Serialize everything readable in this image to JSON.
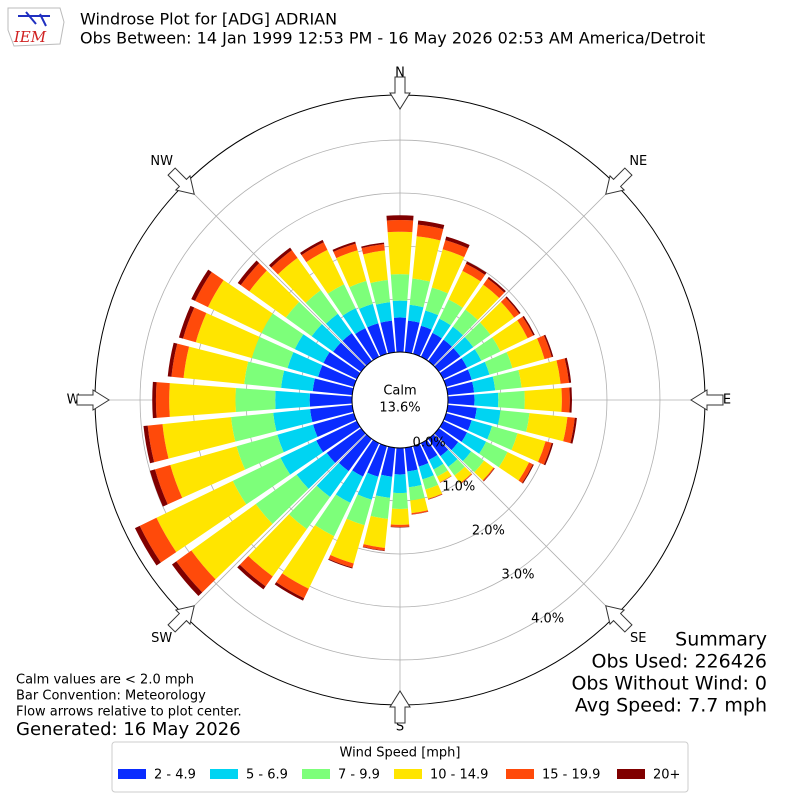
{
  "chart_data": {
    "type": "windrose",
    "title": "Windrose Plot for [ADG] ADRIAN",
    "subtitle": "Obs Between: 14 Jan 1999 12:53 PM - 16 May 2026 02:53 AM America/Detroit",
    "logo_text": "IEM",
    "calm_label": "Calm",
    "calm_value": 13.6,
    "calm_value_label": "13.6%",
    "x": [
      0,
      10,
      20,
      30,
      40,
      50,
      60,
      70,
      80,
      90,
      100,
      110,
      120,
      130,
      140,
      150,
      160,
      170,
      180,
      190,
      200,
      210,
      220,
      230,
      240,
      250,
      260,
      270,
      280,
      290,
      300,
      310,
      320,
      330,
      340,
      350
    ],
    "xticks": [
      {
        "value": 0,
        "label": "N"
      },
      {
        "value": 45,
        "label": "NE"
      },
      {
        "value": 90,
        "label": "E"
      },
      {
        "value": 135,
        "label": "SE"
      },
      {
        "value": 180,
        "label": "S"
      },
      {
        "value": 225,
        "label": "SW"
      },
      {
        "value": 270,
        "label": "W"
      },
      {
        "value": 315,
        "label": "NW"
      }
    ],
    "ylim": [
      0,
      4.85
    ],
    "yticks": [
      {
        "value": 0,
        "label": "0.0%"
      },
      {
        "value": 1,
        "label": "1.0%"
      },
      {
        "value": 2,
        "label": "2.0%"
      },
      {
        "value": 3,
        "label": "3.0%"
      },
      {
        "value": 4,
        "label": "4.0%"
      }
    ],
    "grid": true,
    "legend_title": "Wind Speed [mph]",
    "series": [
      {
        "name": "2 - 4.9",
        "color": "#0a2cff",
        "values": [
          0.65,
          0.6,
          0.55,
          0.5,
          0.5,
          0.5,
          0.5,
          0.5,
          0.5,
          0.5,
          0.55,
          0.5,
          0.5,
          0.45,
          0.4,
          0.35,
          0.4,
          0.45,
          0.5,
          0.55,
          0.6,
          0.7,
          0.75,
          0.8,
          0.85,
          0.8,
          0.8,
          0.8,
          0.75,
          0.7,
          0.7,
          0.65,
          0.65,
          0.6,
          0.6,
          0.6
        ]
      },
      {
        "name": "5 - 6.9",
        "color": "#00d4f2",
        "values": [
          0.32,
          0.3,
          0.3,
          0.3,
          0.3,
          0.3,
          0.3,
          0.35,
          0.4,
          0.45,
          0.45,
          0.4,
          0.4,
          0.3,
          0.25,
          0.2,
          0.25,
          0.3,
          0.35,
          0.4,
          0.45,
          0.55,
          0.6,
          0.7,
          0.75,
          0.7,
          0.7,
          0.65,
          0.6,
          0.6,
          0.6,
          0.5,
          0.45,
          0.42,
          0.38,
          0.35
        ]
      },
      {
        "name": "7 - 9.9",
        "color": "#7dff7a",
        "values": [
          0.5,
          0.5,
          0.45,
          0.4,
          0.4,
          0.4,
          0.4,
          0.45,
          0.5,
          0.5,
          0.55,
          0.5,
          0.45,
          0.3,
          0.2,
          0.15,
          0.2,
          0.25,
          0.3,
          0.4,
          0.5,
          0.7,
          0.75,
          0.95,
          1.0,
          0.8,
          0.8,
          0.75,
          0.7,
          0.7,
          0.7,
          0.6,
          0.55,
          0.5,
          0.45,
          0.42
        ]
      },
      {
        "name": "10 - 14.9",
        "color": "#ffe500",
        "values": [
          0.8,
          0.8,
          0.75,
          0.6,
          0.58,
          0.55,
          0.57,
          0.63,
          0.74,
          0.7,
          0.72,
          0.55,
          0.45,
          0.22,
          0.18,
          0.12,
          0.18,
          0.24,
          0.3,
          0.55,
          0.75,
          1.1,
          1.1,
          1.5,
          1.6,
          1.3,
          1.3,
          1.25,
          1.15,
          1.1,
          1.12,
          0.85,
          0.75,
          0.72,
          0.6,
          0.56
        ]
      },
      {
        "name": "15 - 19.9",
        "color": "#ff4a0a",
        "values": [
          0.22,
          0.22,
          0.18,
          0.15,
          0.14,
          0.12,
          0.12,
          0.14,
          0.16,
          0.15,
          0.14,
          0.12,
          0.08,
          0.02,
          0.015,
          0.008,
          0.015,
          0.025,
          0.04,
          0.05,
          0.08,
          0.2,
          0.23,
          0.35,
          0.35,
          0.3,
          0.28,
          0.25,
          0.23,
          0.25,
          0.27,
          0.2,
          0.18,
          0.16,
          0.13,
          0.12
        ]
      },
      {
        "name": "20+",
        "color": "#800000",
        "values": [
          0.09,
          0.08,
          0.07,
          0.05,
          0.04,
          0.03,
          0.03,
          0.03,
          0.04,
          0.04,
          0.04,
          0.03,
          0.02,
          0.01,
          0.005,
          0.002,
          0.005,
          0.005,
          0.01,
          0.01,
          0.02,
          0.05,
          0.07,
          0.1,
          0.1,
          0.1,
          0.08,
          0.07,
          0.07,
          0.08,
          0.08,
          0.07,
          0.06,
          0.05,
          0.04,
          0.03
        ]
      }
    ],
    "summary": [
      "Summary",
      "Obs Used: 226426",
      "Obs Without Wind: 0",
      "Avg Speed: 7.7 mph"
    ],
    "notes": [
      "Calm values are < 2.0 mph",
      "Bar Convention: Meteorology",
      "Flow arrows relative to plot center."
    ],
    "generated": "Generated: 16 May 2026"
  }
}
